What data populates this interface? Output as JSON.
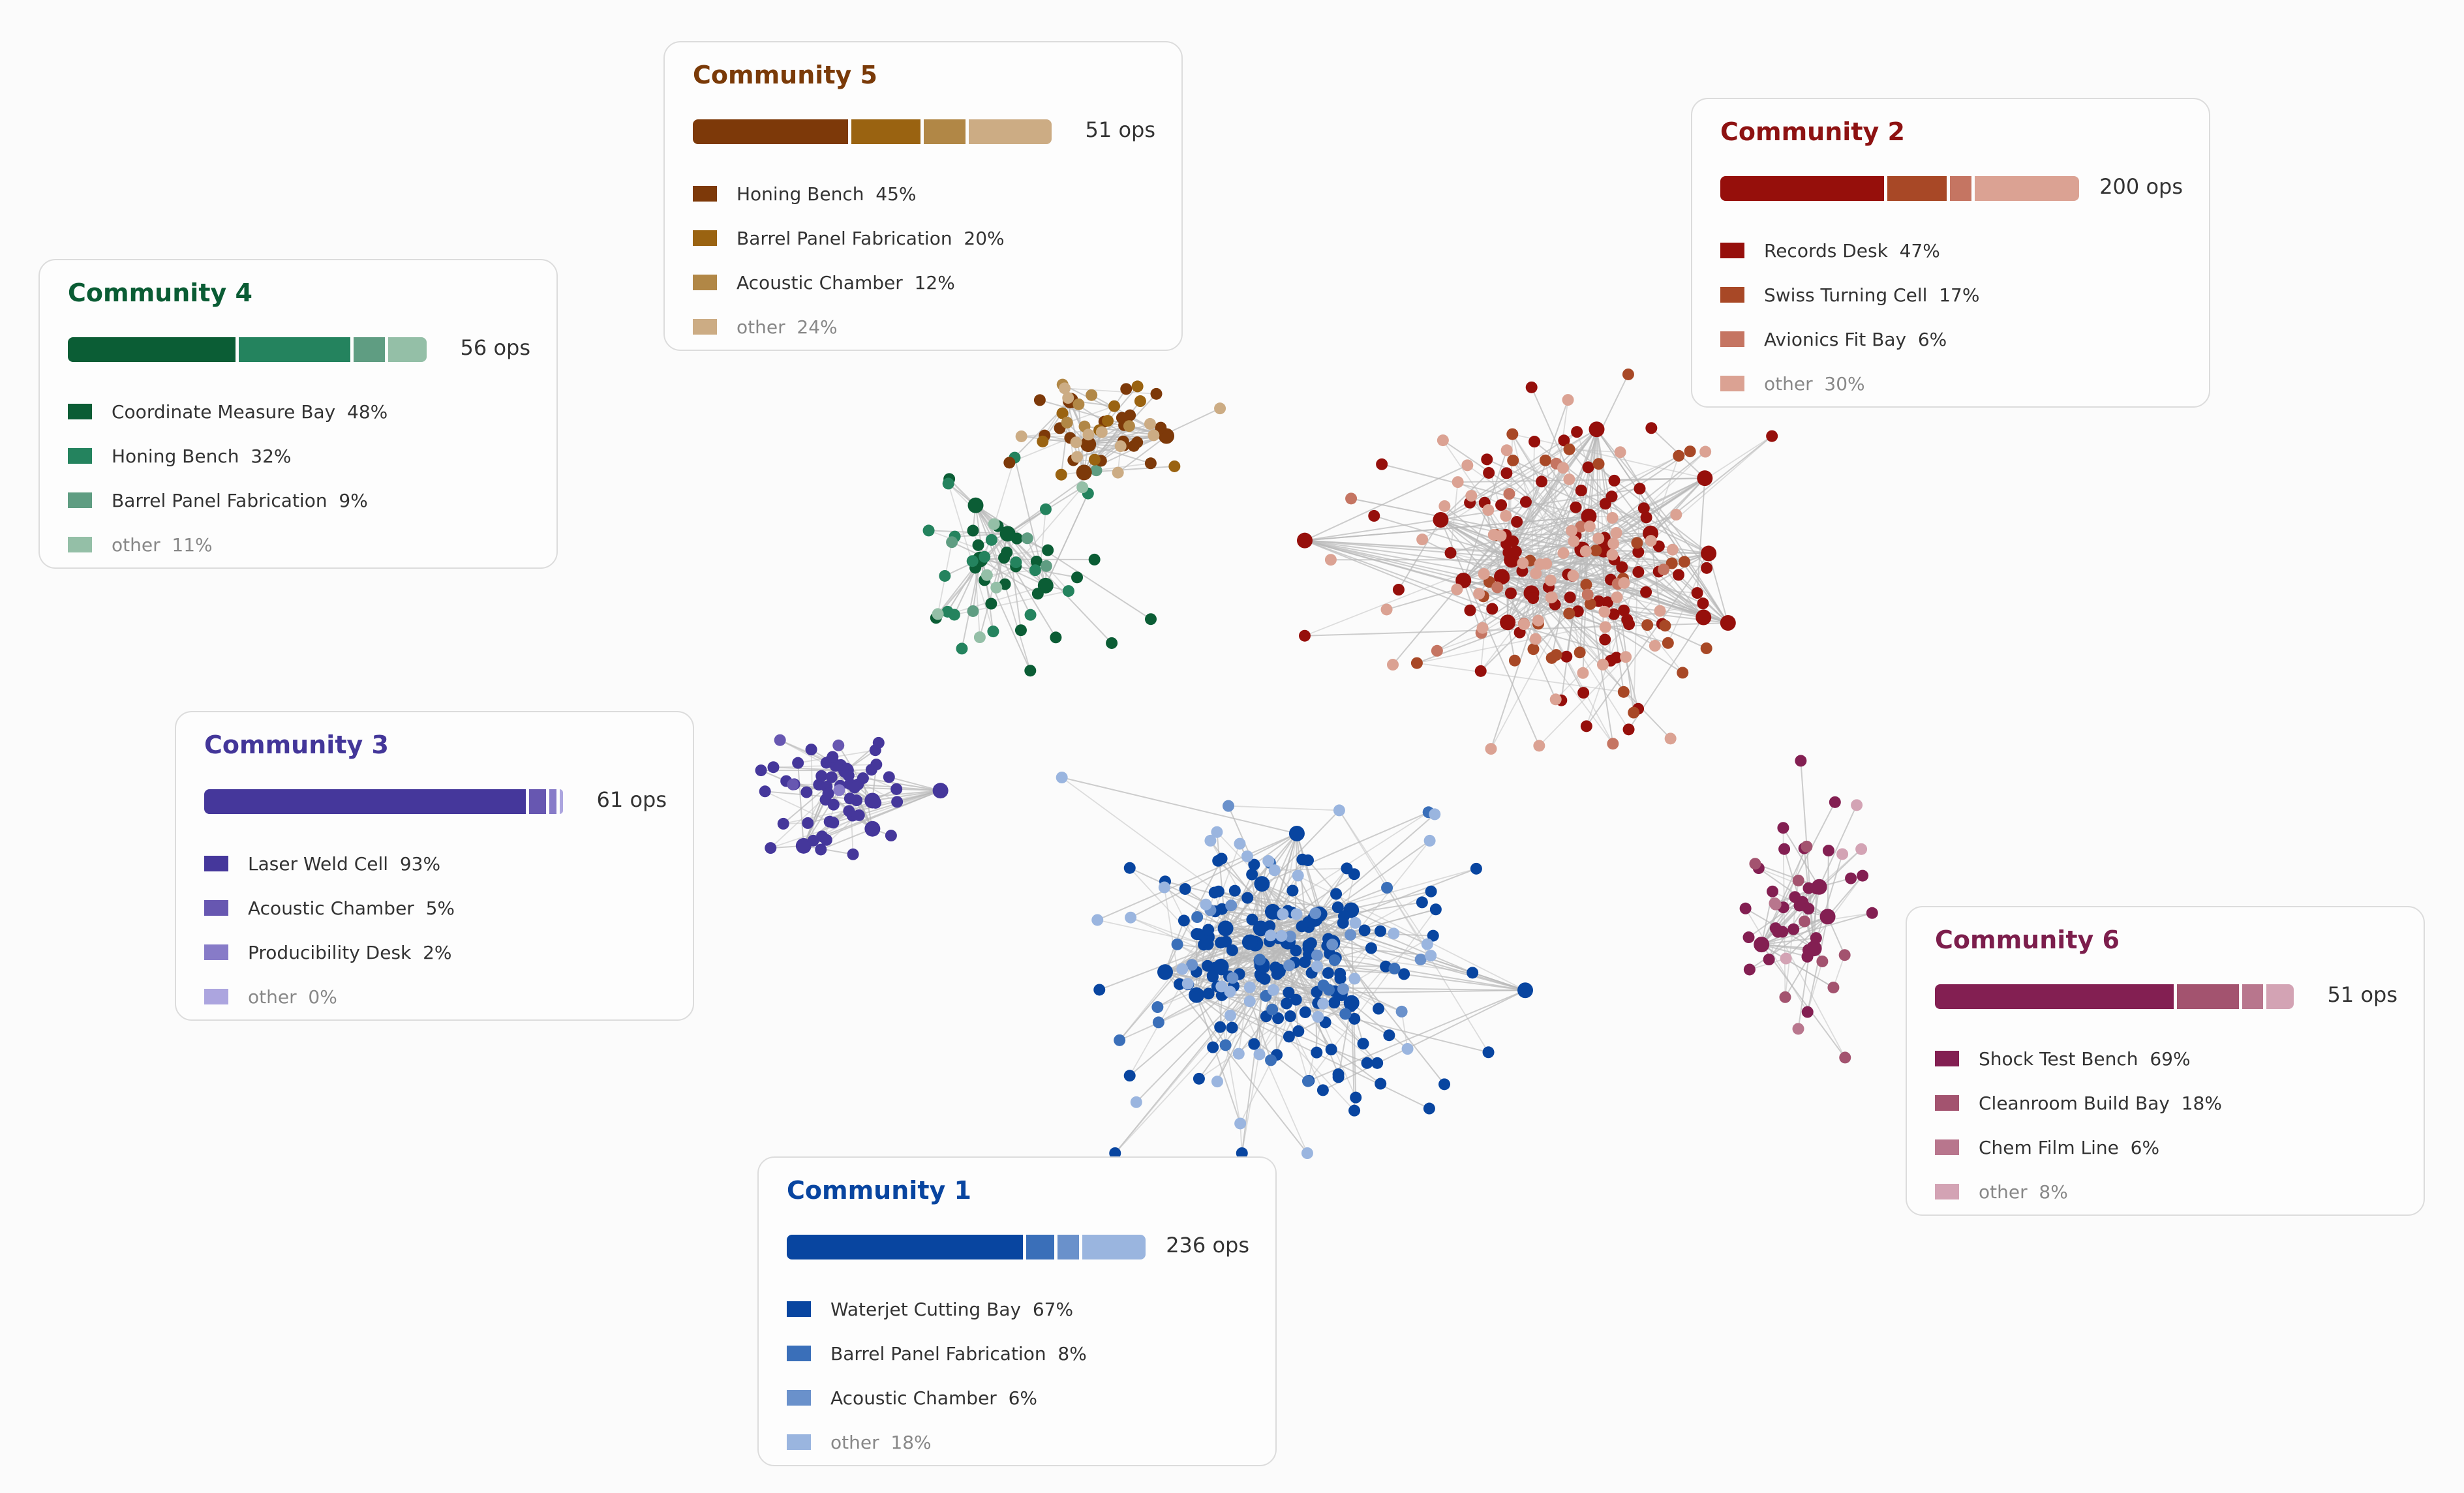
{
  "communities": [
    {
      "id": 1,
      "title": "Community 1",
      "ops": "236 ops",
      "color": "#0845a0",
      "shares": [
        67,
        8,
        6,
        18
      ],
      "swatches": [
        "#0845a0",
        "#3a6fb9",
        "#6a91cb",
        "#9ab5df"
      ],
      "legend": [
        "Waterjet Cutting Bay  67%",
        "Barrel Panel Fabrication  8%",
        "Acoustic Chamber  6%",
        "other  18%"
      ]
    },
    {
      "id": 2,
      "title": "Community 2",
      "ops": "200 ops",
      "color": "#8e1212",
      "shares": [
        47,
        17,
        6,
        30
      ],
      "swatches": [
        "#960f0b",
        "#a84826",
        "#c57562",
        "#dba293"
      ],
      "legend": [
        "Records Desk  47%",
        "Swiss Turning Cell  17%",
        "Avionics Fit Bay  6%",
        "other  30%"
      ]
    },
    {
      "id": 3,
      "title": "Community 3",
      "ops": "61 ops",
      "color": "#433699",
      "shares": [
        93,
        5,
        2,
        0
      ],
      "swatches": [
        "#45379b",
        "#6757b1",
        "#877bc8",
        "#aca5df"
      ],
      "legend": [
        "Laser Weld Cell  93%",
        "Acoustic Chamber  5%",
        "Producibility Desk  2%",
        "other  0%"
      ]
    },
    {
      "id": 4,
      "title": "Community 4",
      "ops": "56 ops",
      "color": "#0a5c34",
      "shares": [
        48,
        32,
        9,
        11
      ],
      "swatches": [
        "#0b5d35",
        "#24835e",
        "#5f9d82",
        "#94bfa7"
      ],
      "legend": [
        "Coordinate Measure Bay  48%",
        "Honing Bench  32%",
        "Barrel Panel Fabrication  9%",
        "other  11%"
      ]
    },
    {
      "id": 5,
      "title": "Community 5",
      "ops": "51 ops",
      "color": "#7a3a08",
      "shares": [
        45,
        20,
        12,
        24
      ],
      "swatches": [
        "#7d3909",
        "#9a6311",
        "#b18746",
        "#ccac84"
      ],
      "legend": [
        "Honing Bench  45%",
        "Barrel Panel Fabrication  20%",
        "Acoustic Chamber  12%",
        "other  24%"
      ]
    },
    {
      "id": 6,
      "title": "Community 6",
      "ops": "51 ops",
      "color": "#7c1e4c",
      "shares": [
        69,
        18,
        6,
        8
      ],
      "swatches": [
        "#831f52",
        "#a3536f",
        "#b8768d",
        "#d3a3b4"
      ],
      "legend": [
        "Shock Test Bench  69%",
        "Cleanroom Build Bay  18%",
        "Chem Film Line  6%",
        "other  8%"
      ]
    }
  ]
}
